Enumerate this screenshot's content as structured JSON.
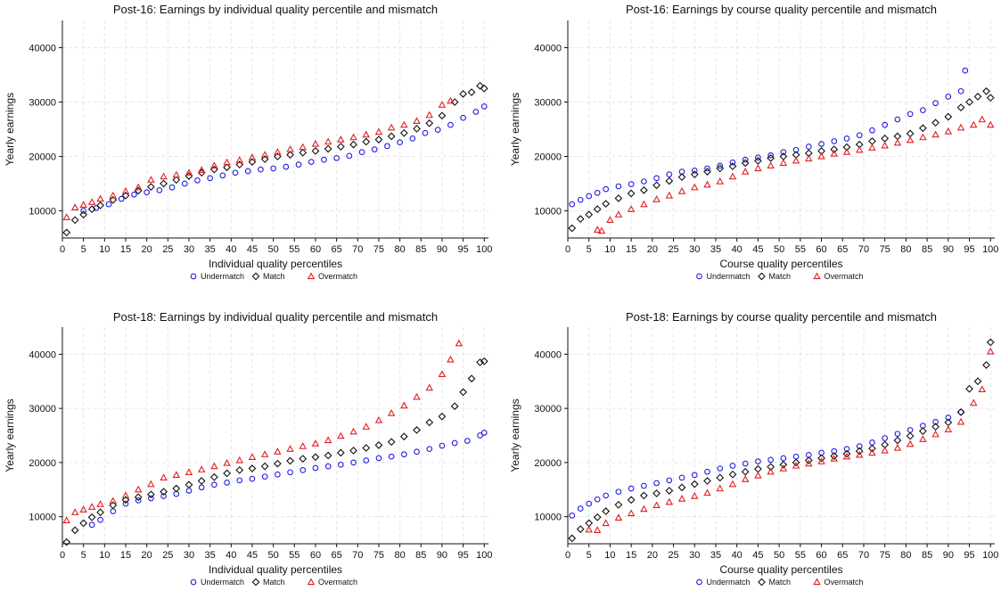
{
  "chart_data": [
    {
      "type": "scatter",
      "title": "Post-16: Earnings by individual quality percentile and mismatch",
      "xlabel": "Individual quality percentiles",
      "ylabel": "Yearly earnings",
      "xlim": [
        0,
        101
      ],
      "ylim": [
        5000,
        45000
      ],
      "xticks": [
        0,
        5,
        10,
        15,
        20,
        25,
        30,
        35,
        40,
        45,
        50,
        55,
        60,
        65,
        70,
        75,
        80,
        85,
        90,
        95,
        100
      ],
      "yticks": [
        10000,
        20000,
        30000,
        40000
      ],
      "grid": true,
      "legend_position": "bottom",
      "series": [
        {
          "name": "Undermatch",
          "color": "#1f1fe0",
          "marker": "circle",
          "x": [
            5,
            8,
            11,
            14,
            17,
            20,
            23,
            26,
            29,
            32,
            35,
            38,
            41,
            44,
            47,
            50,
            53,
            56,
            59,
            62,
            65,
            68,
            71,
            74,
            77,
            80,
            83,
            86,
            89,
            92,
            95,
            98,
            100
          ],
          "y": [
            10000,
            10500,
            11200,
            12200,
            13000,
            13400,
            13800,
            14300,
            15000,
            15600,
            16000,
            16500,
            17000,
            17300,
            17600,
            17800,
            18100,
            18500,
            19000,
            19400,
            19700,
            20100,
            20800,
            21300,
            21900,
            22600,
            23300,
            24300,
            24900,
            25800,
            27100,
            28200,
            29200
          ]
        },
        {
          "name": "Match",
          "color": "#111111",
          "marker": "diamond",
          "x": [
            1,
            3,
            5,
            7,
            9,
            12,
            15,
            18,
            21,
            24,
            27,
            30,
            33,
            36,
            39,
            42,
            45,
            48,
            51,
            54,
            57,
            60,
            63,
            66,
            69,
            72,
            75,
            78,
            81,
            84,
            87,
            90,
            93,
            95,
            97,
            99,
            100
          ],
          "y": [
            6000,
            8300,
            9300,
            10300,
            11000,
            12000,
            12800,
            13700,
            14400,
            15000,
            15700,
            16400,
            17000,
            17600,
            18000,
            18500,
            19000,
            19500,
            20000,
            20300,
            20700,
            21000,
            21400,
            21800,
            22200,
            22700,
            23100,
            23700,
            24300,
            25100,
            26100,
            27500,
            30000,
            31500,
            31800,
            33000,
            32500
          ]
        },
        {
          "name": "Overmatch",
          "color": "#e01f1f",
          "marker": "triangle",
          "x": [
            1,
            3,
            5,
            7,
            9,
            12,
            15,
            18,
            21,
            24,
            27,
            30,
            33,
            36,
            39,
            42,
            45,
            48,
            51,
            54,
            57,
            60,
            63,
            66,
            69,
            72,
            75,
            78,
            81,
            84,
            87,
            90,
            92
          ],
          "y": [
            8800,
            10600,
            11100,
            11600,
            12200,
            12800,
            13600,
            14300,
            15700,
            16300,
            16600,
            17000,
            17500,
            18300,
            18900,
            19300,
            19800,
            20300,
            20800,
            21300,
            21700,
            22300,
            22700,
            23100,
            23500,
            24000,
            24500,
            25300,
            25800,
            26500,
            27600,
            29500,
            30200
          ]
        }
      ]
    },
    {
      "type": "scatter",
      "title": "Post-16: Earnings by course quality percentile and mismatch",
      "xlabel": "Course quality percentiles",
      "ylabel": "Yearly earnings",
      "xlim": [
        0,
        101
      ],
      "ylim": [
        5000,
        45000
      ],
      "xticks": [
        0,
        5,
        10,
        15,
        20,
        25,
        30,
        35,
        40,
        45,
        50,
        55,
        60,
        65,
        70,
        75,
        80,
        85,
        90,
        95,
        100
      ],
      "yticks": [
        10000,
        20000,
        30000,
        40000
      ],
      "grid": true,
      "legend_position": "bottom",
      "series": [
        {
          "name": "Undermatch",
          "color": "#1f1fe0",
          "marker": "circle",
          "x": [
            1,
            3,
            5,
            7,
            9,
            12,
            15,
            18,
            21,
            24,
            27,
            30,
            33,
            36,
            39,
            42,
            45,
            48,
            51,
            54,
            57,
            60,
            63,
            66,
            69,
            72,
            75,
            78,
            81,
            84,
            87,
            90,
            93,
            94
          ],
          "y": [
            11200,
            12000,
            12700,
            13300,
            14000,
            14500,
            14900,
            15400,
            16000,
            16700,
            17200,
            17400,
            17800,
            18300,
            18900,
            19400,
            19800,
            20200,
            20800,
            21200,
            21800,
            22300,
            22800,
            23300,
            23900,
            24800,
            25800,
            26800,
            27800,
            28500,
            29800,
            31000,
            32000,
            35800
          ]
        },
        {
          "name": "Match",
          "color": "#111111",
          "marker": "diamond",
          "x": [
            1,
            3,
            5,
            7,
            9,
            12,
            15,
            18,
            21,
            24,
            27,
            30,
            33,
            36,
            39,
            42,
            45,
            48,
            51,
            54,
            57,
            60,
            63,
            66,
            69,
            72,
            75,
            78,
            81,
            84,
            87,
            90,
            93,
            95,
            97,
            99,
            100
          ],
          "y": [
            6800,
            8500,
            9300,
            10300,
            11300,
            12300,
            13200,
            13800,
            14700,
            15500,
            16200,
            16700,
            17200,
            17800,
            18200,
            18800,
            19200,
            19700,
            20000,
            20300,
            20600,
            21000,
            21300,
            21700,
            22200,
            22800,
            23300,
            23700,
            24200,
            25200,
            26200,
            27300,
            29000,
            30000,
            31000,
            32000,
            30800
          ]
        },
        {
          "name": "Overmatch",
          "color": "#e01f1f",
          "marker": "triangle",
          "x": [
            7,
            8,
            10,
            12,
            15,
            18,
            21,
            24,
            27,
            30,
            33,
            36,
            39,
            42,
            45,
            48,
            51,
            54,
            57,
            60,
            63,
            66,
            69,
            72,
            75,
            78,
            81,
            84,
            87,
            90,
            93,
            96,
            98,
            100
          ],
          "y": [
            6500,
            6300,
            8300,
            9300,
            10300,
            11200,
            12100,
            12800,
            13600,
            14300,
            14800,
            15400,
            16300,
            17200,
            17800,
            18300,
            18800,
            19200,
            19600,
            20000,
            20500,
            20800,
            21200,
            21600,
            22000,
            22500,
            23000,
            23500,
            24000,
            24600,
            25300,
            25800,
            26800,
            25800
          ]
        }
      ]
    },
    {
      "type": "scatter",
      "title": "Post-18: Earnings by individual quality percentile and mismatch",
      "xlabel": "Individual quality percentiles",
      "ylabel": "Yearly earnings",
      "xlim": [
        0,
        101
      ],
      "ylim": [
        5000,
        45000
      ],
      "xticks": [
        0,
        5,
        10,
        15,
        20,
        25,
        30,
        35,
        40,
        45,
        50,
        55,
        60,
        65,
        70,
        75,
        80,
        85,
        90,
        95,
        100
      ],
      "yticks": [
        10000,
        20000,
        30000,
        40000
      ],
      "grid": true,
      "legend_position": "bottom",
      "series": [
        {
          "name": "Undermatch",
          "color": "#1f1fe0",
          "marker": "circle",
          "x": [
            7,
            9,
            12,
            15,
            18,
            21,
            24,
            27,
            30,
            33,
            36,
            39,
            42,
            45,
            48,
            51,
            54,
            57,
            60,
            63,
            66,
            69,
            72,
            75,
            78,
            81,
            84,
            87,
            90,
            93,
            96,
            99,
            100
          ],
          "y": [
            8500,
            9400,
            11000,
            12400,
            13000,
            13400,
            13800,
            14200,
            14800,
            15400,
            15900,
            16300,
            16700,
            17000,
            17400,
            17800,
            18200,
            18600,
            19000,
            19300,
            19600,
            20000,
            20400,
            20800,
            21100,
            21500,
            22000,
            22500,
            23100,
            23600,
            24000,
            25000,
            25500
          ]
        },
        {
          "name": "Match",
          "color": "#111111",
          "marker": "diamond",
          "x": [
            1,
            3,
            5,
            7,
            9,
            12,
            15,
            18,
            21,
            24,
            27,
            30,
            33,
            36,
            39,
            42,
            45,
            48,
            51,
            54,
            57,
            60,
            63,
            66,
            69,
            72,
            75,
            78,
            81,
            84,
            87,
            90,
            93,
            95,
            97,
            99,
            100
          ],
          "y": [
            5300,
            7500,
            8800,
            9900,
            10800,
            12100,
            13100,
            13600,
            14100,
            14600,
            15200,
            15900,
            16600,
            17300,
            18000,
            18600,
            18900,
            19300,
            19800,
            20300,
            20700,
            21000,
            21300,
            21800,
            22200,
            22700,
            23200,
            23800,
            24800,
            26000,
            27400,
            28500,
            30400,
            33000,
            35500,
            38500,
            38700
          ]
        },
        {
          "name": "Overmatch",
          "color": "#e01f1f",
          "marker": "triangle",
          "x": [
            1,
            3,
            5,
            7,
            9,
            12,
            15,
            18,
            21,
            24,
            27,
            30,
            33,
            36,
            39,
            42,
            45,
            48,
            51,
            54,
            57,
            60,
            63,
            66,
            69,
            72,
            75,
            78,
            81,
            84,
            87,
            90,
            92,
            94
          ],
          "y": [
            9300,
            10800,
            11300,
            11800,
            12300,
            12900,
            13900,
            15000,
            16000,
            17200,
            17700,
            18200,
            18700,
            19300,
            19900,
            20400,
            21000,
            21500,
            22000,
            22500,
            23000,
            23500,
            24100,
            24900,
            25700,
            26600,
            27800,
            29100,
            30500,
            32100,
            33800,
            36300,
            39000,
            42000
          ]
        }
      ]
    },
    {
      "type": "scatter",
      "title": "Post-18: Earnings by course quality percentile and mismatch",
      "xlabel": "Course quality percentiles",
      "ylabel": "Yearly earnings",
      "xlim": [
        0,
        101
      ],
      "ylim": [
        5000,
        45000
      ],
      "xticks": [
        0,
        5,
        10,
        15,
        20,
        25,
        30,
        35,
        40,
        45,
        50,
        55,
        60,
        65,
        70,
        75,
        80,
        85,
        90,
        95,
        100
      ],
      "yticks": [
        10000,
        20000,
        30000,
        40000
      ],
      "grid": true,
      "legend_position": "bottom",
      "series": [
        {
          "name": "Undermatch",
          "color": "#1f1fe0",
          "marker": "circle",
          "x": [
            1,
            3,
            5,
            7,
            9,
            12,
            15,
            18,
            21,
            24,
            27,
            30,
            33,
            36,
            39,
            42,
            45,
            48,
            51,
            54,
            57,
            60,
            63,
            66,
            69,
            72,
            75,
            78,
            81,
            84,
            87,
            90,
            93
          ],
          "y": [
            10200,
            11500,
            12400,
            13200,
            13900,
            14600,
            15200,
            15700,
            16200,
            16700,
            17200,
            17700,
            18300,
            18900,
            19400,
            19800,
            20200,
            20500,
            20800,
            21100,
            21400,
            21800,
            22100,
            22500,
            23000,
            23700,
            24500,
            25300,
            26000,
            26800,
            27500,
            28300,
            29300
          ]
        },
        {
          "name": "Match",
          "color": "#111111",
          "marker": "diamond",
          "x": [
            1,
            3,
            5,
            7,
            9,
            12,
            15,
            18,
            21,
            24,
            27,
            30,
            33,
            36,
            39,
            42,
            45,
            48,
            51,
            54,
            57,
            60,
            63,
            66,
            69,
            72,
            75,
            78,
            81,
            84,
            87,
            90,
            93,
            95,
            97,
            99,
            100
          ],
          "y": [
            6000,
            7700,
            8800,
            9900,
            11000,
            12200,
            13100,
            13900,
            14300,
            14800,
            15400,
            16000,
            16600,
            17200,
            17800,
            18300,
            18800,
            19200,
            19600,
            20000,
            20400,
            20800,
            21200,
            21600,
            22100,
            22600,
            23300,
            24100,
            24900,
            25800,
            26600,
            27400,
            29300,
            33600,
            35000,
            38000,
            42200
          ]
        },
        {
          "name": "Overmatch",
          "color": "#e01f1f",
          "marker": "triangle",
          "x": [
            5,
            7,
            9,
            12,
            15,
            18,
            21,
            24,
            27,
            30,
            33,
            36,
            39,
            42,
            45,
            48,
            51,
            54,
            57,
            60,
            63,
            66,
            69,
            72,
            75,
            78,
            81,
            84,
            87,
            90,
            93,
            96,
            98,
            100
          ],
          "y": [
            7600,
            7500,
            8800,
            9800,
            10600,
            11400,
            12100,
            12700,
            13300,
            13800,
            14400,
            15200,
            16000,
            16900,
            17600,
            18300,
            18900,
            19400,
            19800,
            20200,
            20700,
            21100,
            21400,
            21800,
            22200,
            22700,
            23400,
            24300,
            25200,
            26100,
            27500,
            31000,
            33500,
            40500
          ]
        }
      ]
    }
  ]
}
